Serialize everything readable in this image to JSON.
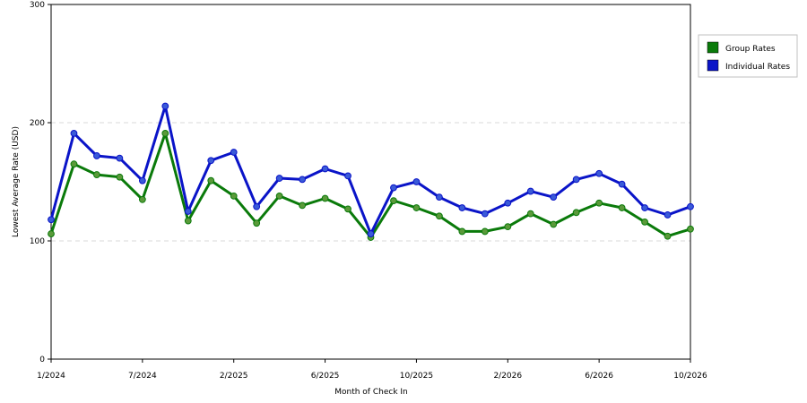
{
  "chart_data": {
    "type": "line",
    "title": "",
    "xlabel": "Month of Check In",
    "ylabel": "Lowest Average Rate (USD)",
    "ylim": [
      0,
      300
    ],
    "y_ticks": [
      "0",
      "100",
      "200",
      "300"
    ],
    "x_tick_labels": [
      {
        "index": 0,
        "label": "1/2024"
      },
      {
        "index": 4,
        "label": "7/2024"
      },
      {
        "index": 8,
        "label": "2/2025"
      },
      {
        "index": 12,
        "label": "6/2025"
      },
      {
        "index": 16,
        "label": "10/2025"
      },
      {
        "index": 20,
        "label": "2/2026"
      },
      {
        "index": 24,
        "label": "6/2026"
      },
      {
        "index": 28,
        "label": "10/2026"
      }
    ],
    "grid": "horizontal-dashed",
    "legend_position": "right",
    "series": [
      {
        "name": "Group Rates",
        "color": "#0a7a0a",
        "marker_color": "#5a9a3a",
        "values": [
          106,
          165,
          156,
          154,
          135,
          191,
          117,
          151,
          138,
          115,
          138,
          130,
          136,
          127,
          103,
          134,
          128,
          121,
          108,
          108,
          112,
          123,
          114,
          124,
          132,
          128,
          116,
          104,
          110
        ]
      },
      {
        "name": "Individual Rates",
        "color": "#0a14c8",
        "marker_color": "#3a5ad8",
        "values": [
          118,
          191,
          172,
          170,
          151,
          214,
          125,
          168,
          175,
          129,
          153,
          152,
          161,
          155,
          106,
          145,
          150,
          137,
          128,
          123,
          132,
          142,
          137,
          152,
          157,
          148,
          128,
          122,
          129
        ]
      }
    ]
  }
}
